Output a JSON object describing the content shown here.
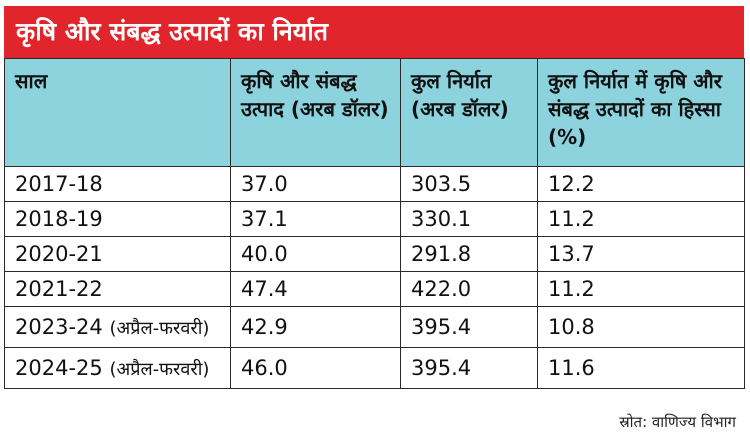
{
  "title": "कृषि और संबद्ध उत्पादों का निर्यात",
  "headers": [
    "साल",
    "कृषि और संबद्ध उत्पाद (अरब डॉलर)",
    "कुल निर्यात (अरब डॉलर)",
    "कुल निर्यात में कृषि और संबद्ध उत्पादों का हिस्सा (%)"
  ],
  "rows": [
    {
      "year": "2017-18",
      "note": "",
      "agri": "37.0",
      "total": "303.5",
      "share": "12.2"
    },
    {
      "year": "2018-19",
      "note": "",
      "agri": "37.1",
      "total": "330.1",
      "share": "11.2"
    },
    {
      "year": "2020-21",
      "note": "",
      "agri": "40.0",
      "total": "291.8",
      "share": "13.7"
    },
    {
      "year": "2021-22",
      "note": "",
      "agri": "47.4",
      "total": "422.0",
      "share": "11.2"
    },
    {
      "year": "2023-24",
      "note": "(अप्रैल-फरवरी)",
      "agri": "42.9",
      "total": "395.4",
      "share": "10.8"
    },
    {
      "year": "2024-25",
      "note": "(अप्रैल-फरवरी)",
      "agri": "46.0",
      "total": "395.4",
      "share": "11.6"
    }
  ],
  "source": "स्रोत: वाणिज्य विभाग",
  "colors": {
    "title_bg": "#e0252c",
    "header_bg": "#8dd3de"
  }
}
